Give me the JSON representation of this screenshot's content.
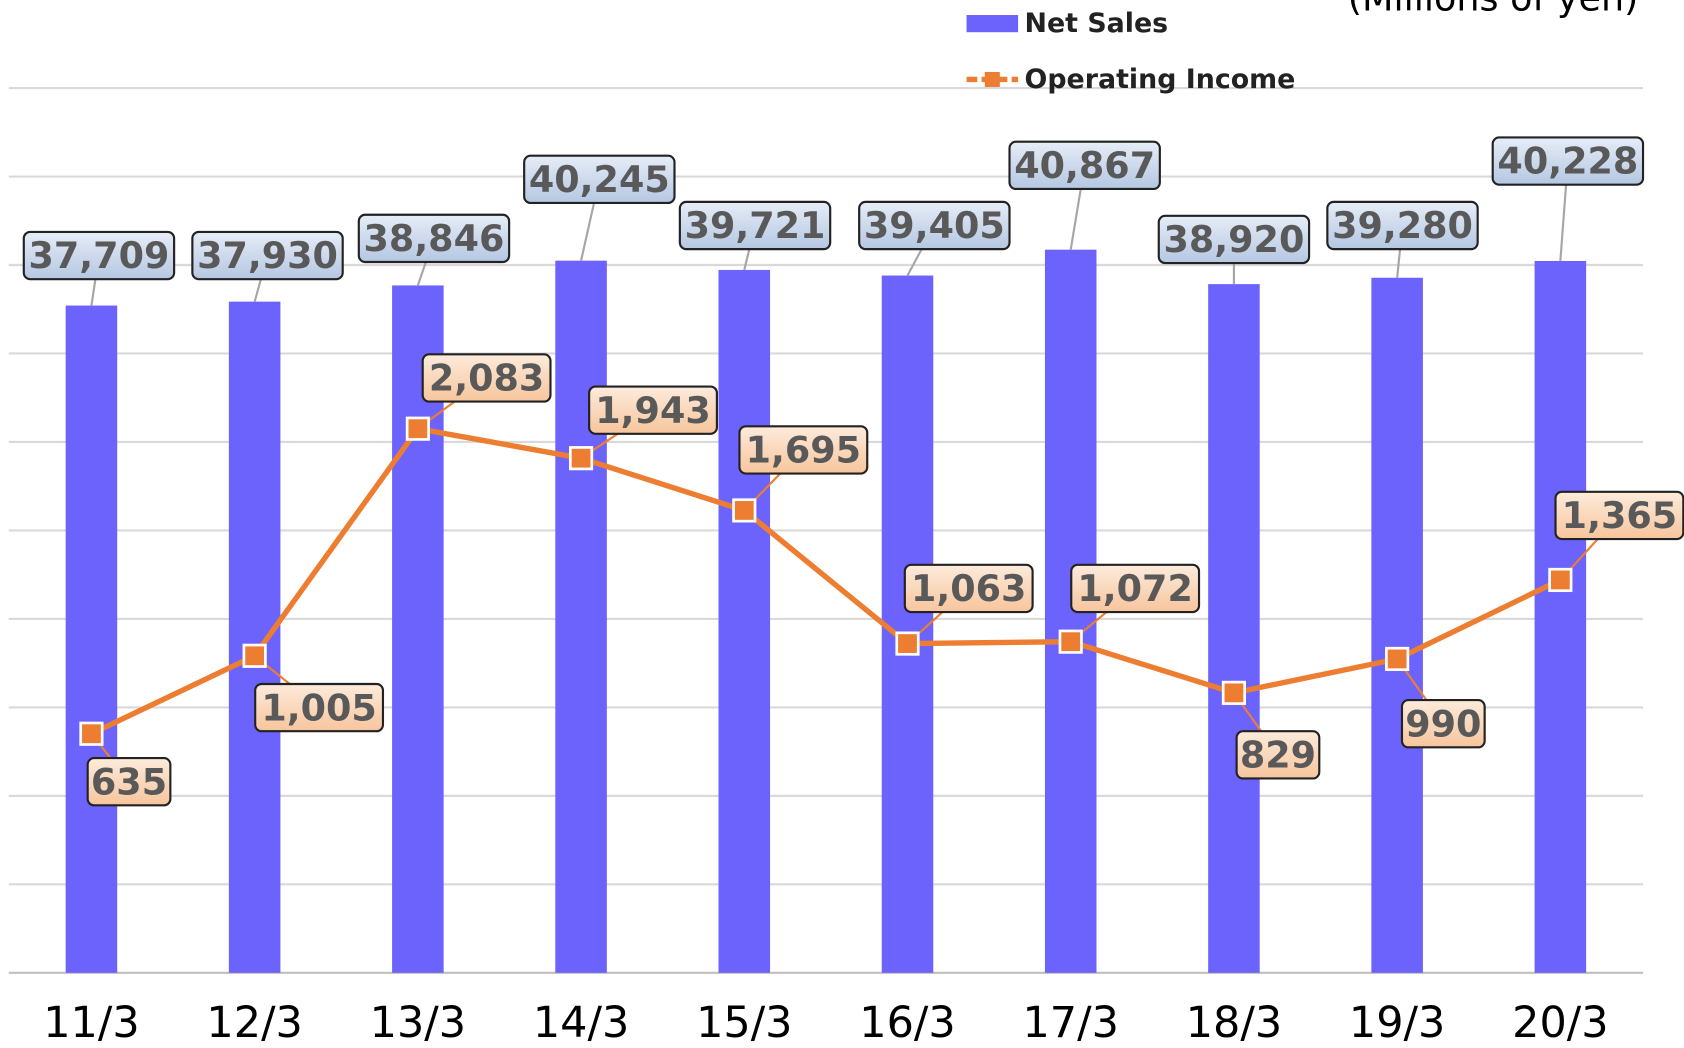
{
  "chart_data": {
    "type": "bar_line",
    "note_text": "(Millions of yen)",
    "categories": [
      "11/3",
      "12/3",
      "13/3",
      "14/3",
      "15/3",
      "16/3",
      "17/3",
      "18/3",
      "19/3",
      "20/3"
    ],
    "series": [
      {
        "name": "Net Sales",
        "type": "bar",
        "color": "#6c63fc",
        "values": [
          37709,
          37930,
          38846,
          40245,
          39721,
          39405,
          40867,
          38920,
          39280,
          40228
        ],
        "value_labels": [
          "37,709",
          "37,930",
          "38,846",
          "40,245",
          "39,721",
          "39,405",
          "40,867",
          "38,920",
          "39,280",
          "40,228"
        ]
      },
      {
        "name": "Operating Income",
        "type": "line",
        "axis": "y2",
        "color": "#ed7d31",
        "values": [
          635,
          1005,
          2083,
          1943,
          1695,
          1063,
          1072,
          829,
          990,
          1365
        ],
        "value_labels": [
          "635",
          "1,005",
          "2,083",
          "1,943",
          "1,695",
          "1,063",
          "1,072",
          "829",
          "990",
          "1,365"
        ]
      }
    ],
    "ylim": [
      0,
      50000
    ],
    "yticks": [
      0,
      5000,
      10000,
      15000,
      20000,
      25000,
      30000,
      35000,
      40000,
      45000,
      50000
    ],
    "y2lim": [
      -500,
      3700
    ],
    "grid": true
  }
}
